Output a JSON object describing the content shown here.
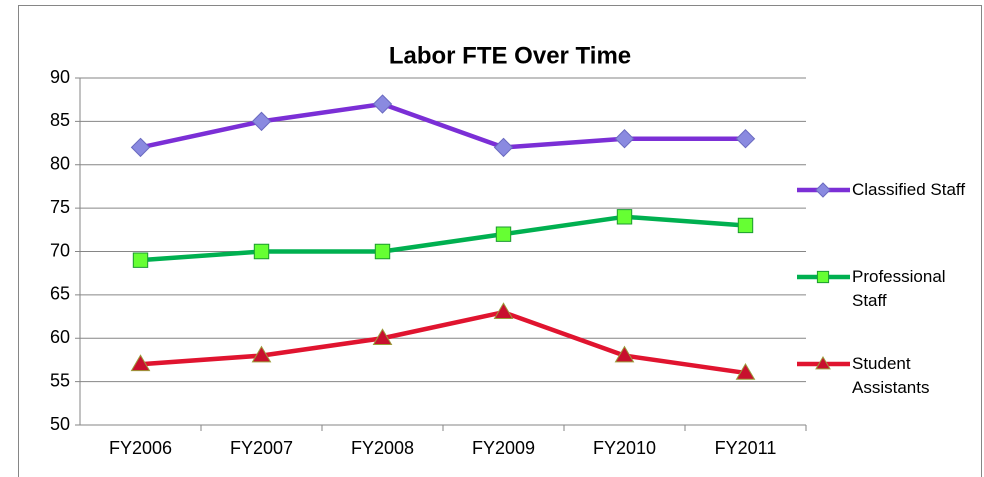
{
  "chart_data": {
    "type": "line",
    "title": "Labor FTE Over Time",
    "categories": [
      "FY2006",
      "FY2007",
      "FY2008",
      "FY2009",
      "FY2010",
      "FY2011"
    ],
    "series": [
      {
        "name": "Classified Staff",
        "color": "#7b2fd6",
        "marker": "diamond",
        "marker_color": "#8a8ae0",
        "values": [
          82,
          85,
          87,
          82,
          83,
          83
        ]
      },
      {
        "name": "Professional Staff",
        "color": "#00b050",
        "marker": "square",
        "marker_color": "#66ff33",
        "values": [
          69,
          70,
          70,
          72,
          74,
          73
        ]
      },
      {
        "name": "Student Assistants",
        "color": "#e0142f",
        "marker": "triangle",
        "marker_color": "#c8102e",
        "values": [
          57,
          58,
          60,
          63,
          58,
          56
        ]
      }
    ],
    "ylim": [
      50,
      90
    ],
    "yticks": [
      50,
      55,
      60,
      65,
      70,
      75,
      80,
      85,
      90
    ],
    "grid": true,
    "legend": "right"
  }
}
